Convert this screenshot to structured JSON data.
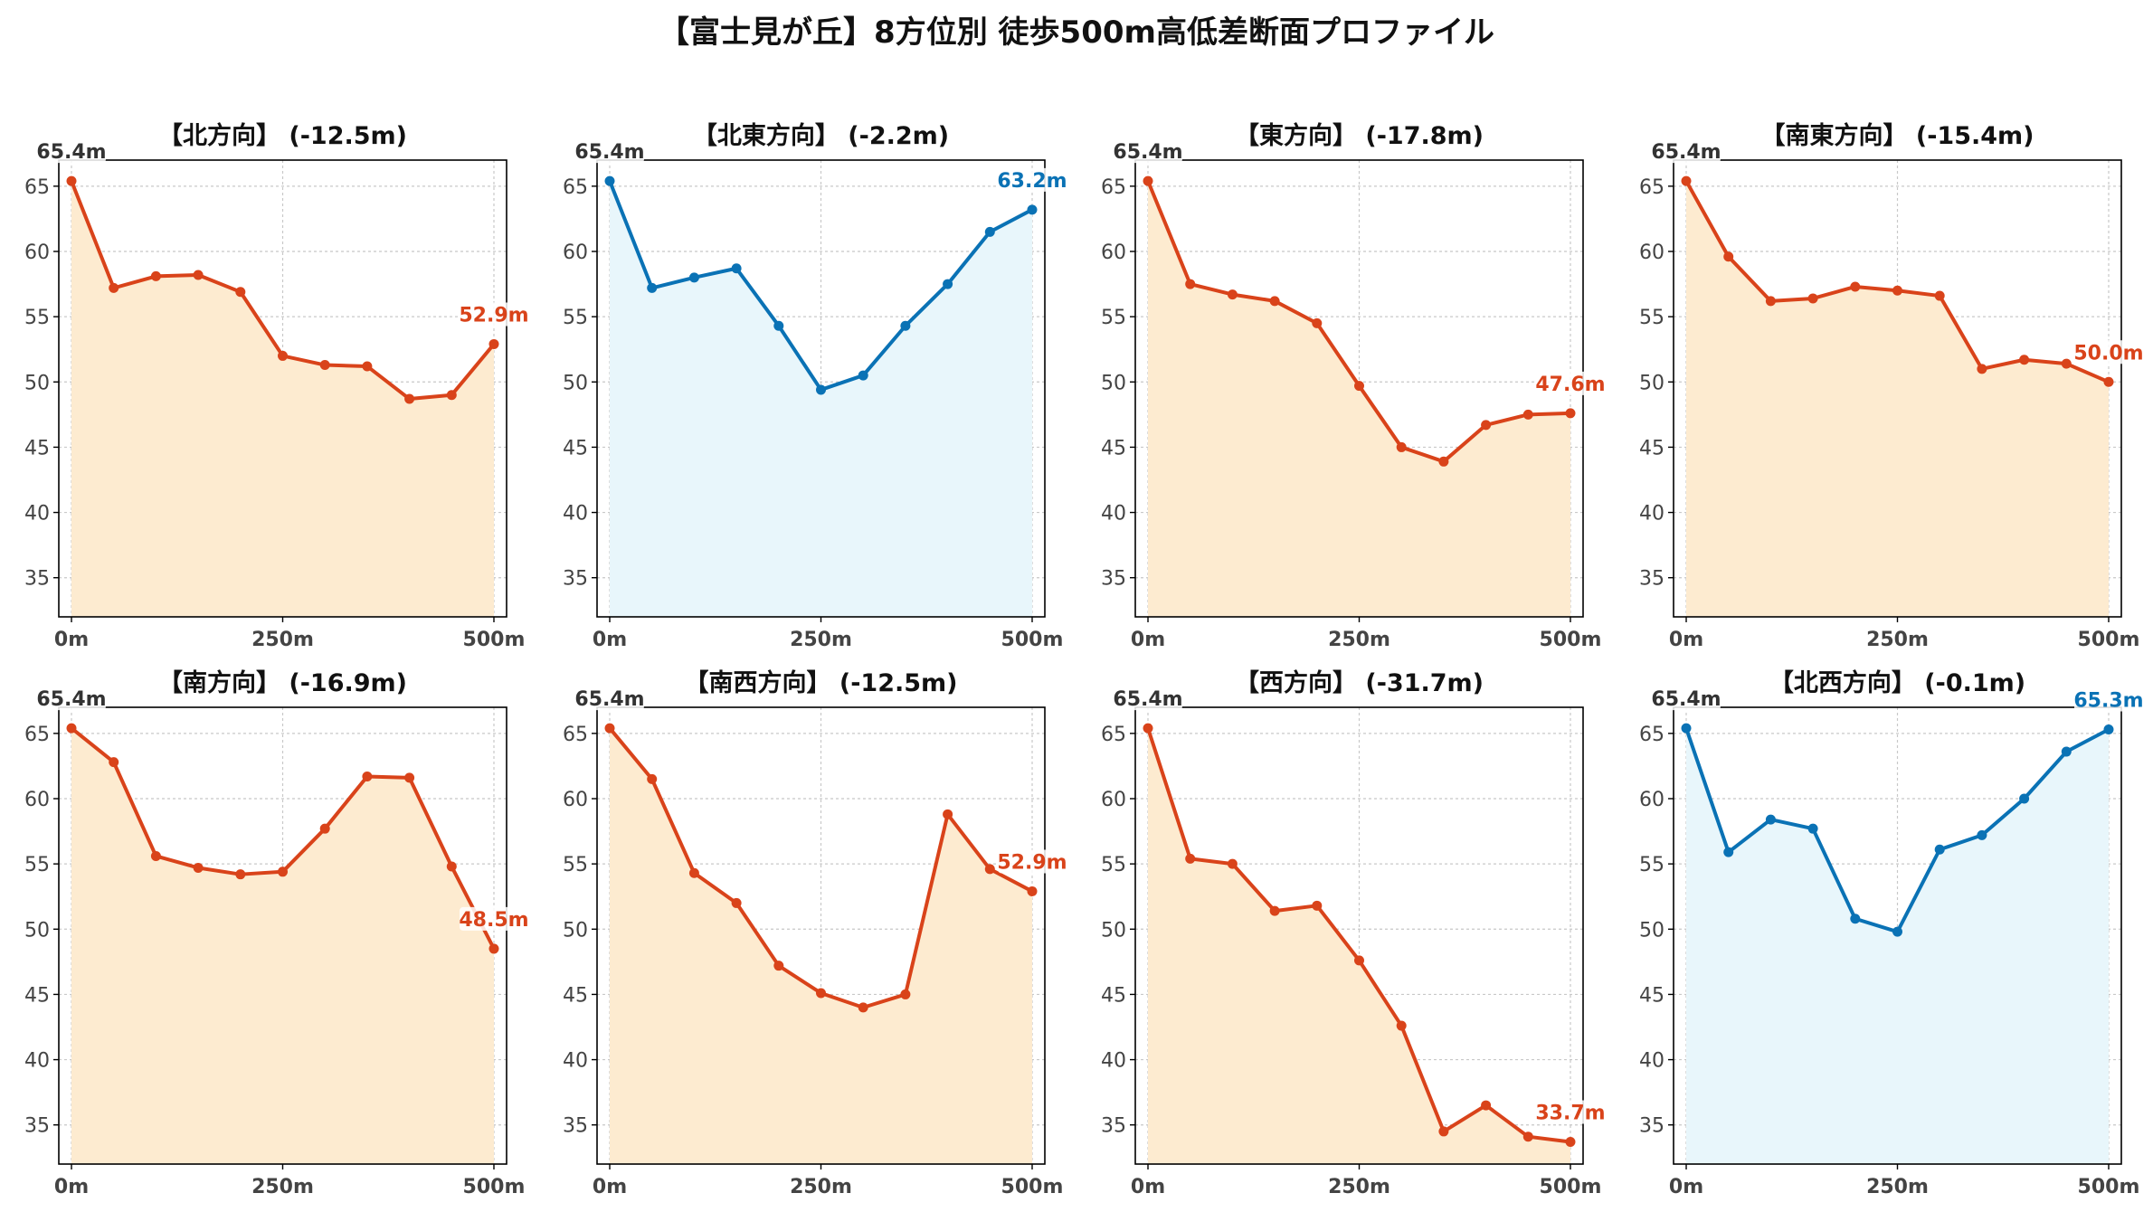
{
  "title": "【富士見が丘】8方位別 徒歩500m高低差断面プロファイル",
  "colors": {
    "down_line": "#d9431a",
    "down_fill": "#fdebd0",
    "up_line": "#0a72b5",
    "up_fill": "#e8f6fb",
    "grid": "#c8c8c8",
    "axis": "#000000",
    "tick_text": "#444444",
    "start_label": "#333333"
  },
  "chart_data": [
    {
      "type": "area",
      "title": "【北方向】 (-12.5m)",
      "x": [
        0,
        50,
        100,
        150,
        200,
        250,
        300,
        350,
        400,
        450,
        500
      ],
      "y": [
        65.4,
        57.2,
        58.1,
        58.2,
        56.9,
        52.0,
        51.3,
        51.2,
        48.7,
        49.0,
        52.9
      ],
      "trend": "down",
      "start_label": "65.4m",
      "end_label": "52.9m",
      "xticks": [
        "0m",
        "250m",
        "500m"
      ],
      "yticks": [
        35,
        40,
        45,
        50,
        55,
        60,
        65
      ],
      "ylim": [
        32,
        67
      ],
      "xlim": [
        -15,
        515
      ],
      "grid": true
    },
    {
      "type": "area",
      "title": "【北東方向】 (-2.2m)",
      "x": [
        0,
        50,
        100,
        150,
        200,
        250,
        300,
        350,
        400,
        450,
        500
      ],
      "y": [
        65.4,
        57.2,
        58.0,
        58.7,
        54.3,
        49.4,
        50.5,
        54.3,
        57.5,
        61.5,
        63.2
      ],
      "trend": "up",
      "start_label": "65.4m",
      "end_label": "63.2m",
      "xticks": [
        "0m",
        "250m",
        "500m"
      ],
      "yticks": [
        35,
        40,
        45,
        50,
        55,
        60,
        65
      ],
      "ylim": [
        32,
        67
      ],
      "xlim": [
        -15,
        515
      ],
      "grid": true
    },
    {
      "type": "area",
      "title": "【東方向】 (-17.8m)",
      "x": [
        0,
        50,
        100,
        150,
        200,
        250,
        300,
        350,
        400,
        450,
        500
      ],
      "y": [
        65.4,
        57.5,
        56.7,
        56.2,
        54.5,
        49.7,
        45.0,
        43.9,
        46.7,
        47.5,
        47.6
      ],
      "trend": "down",
      "start_label": "65.4m",
      "end_label": "47.6m",
      "xticks": [
        "0m",
        "250m",
        "500m"
      ],
      "yticks": [
        35,
        40,
        45,
        50,
        55,
        60,
        65
      ],
      "ylim": [
        32,
        67
      ],
      "xlim": [
        -15,
        515
      ],
      "grid": true
    },
    {
      "type": "area",
      "title": "【南東方向】 (-15.4m)",
      "x": [
        0,
        50,
        100,
        150,
        200,
        250,
        300,
        350,
        400,
        450,
        500
      ],
      "y": [
        65.4,
        59.6,
        56.2,
        56.4,
        57.3,
        57.0,
        56.6,
        51.0,
        51.7,
        51.4,
        50.0
      ],
      "trend": "down",
      "start_label": "65.4m",
      "end_label": "50.0m",
      "xticks": [
        "0m",
        "250m",
        "500m"
      ],
      "yticks": [
        35,
        40,
        45,
        50,
        55,
        60,
        65
      ],
      "ylim": [
        32,
        67
      ],
      "xlim": [
        -15,
        515
      ],
      "grid": true
    },
    {
      "type": "area",
      "title": "【南方向】 (-16.9m)",
      "x": [
        0,
        50,
        100,
        150,
        200,
        250,
        300,
        350,
        400,
        450,
        500
      ],
      "y": [
        65.4,
        62.8,
        55.6,
        54.7,
        54.2,
        54.4,
        57.7,
        61.7,
        61.6,
        54.8,
        48.5
      ],
      "trend": "down",
      "start_label": "65.4m",
      "end_label": "48.5m",
      "xticks": [
        "0m",
        "250m",
        "500m"
      ],
      "yticks": [
        35,
        40,
        45,
        50,
        55,
        60,
        65
      ],
      "ylim": [
        32,
        67
      ],
      "xlim": [
        -15,
        515
      ],
      "grid": true
    },
    {
      "type": "area",
      "title": "【南西方向】 (-12.5m)",
      "x": [
        0,
        50,
        100,
        150,
        200,
        250,
        300,
        350,
        400,
        450,
        500
      ],
      "y": [
        65.4,
        61.5,
        54.3,
        52.0,
        47.2,
        45.1,
        44.0,
        45.0,
        58.8,
        54.6,
        52.9
      ],
      "trend": "down",
      "start_label": "65.4m",
      "end_label": "52.9m",
      "xticks": [
        "0m",
        "250m",
        "500m"
      ],
      "yticks": [
        35,
        40,
        45,
        50,
        55,
        60,
        65
      ],
      "ylim": [
        32,
        67
      ],
      "xlim": [
        -15,
        515
      ],
      "grid": true
    },
    {
      "type": "area",
      "title": "【西方向】 (-31.7m)",
      "x": [
        0,
        50,
        100,
        150,
        200,
        250,
        300,
        350,
        400,
        450,
        500
      ],
      "y": [
        65.4,
        55.4,
        55.0,
        51.4,
        51.8,
        47.6,
        42.6,
        34.5,
        36.5,
        34.1,
        33.7
      ],
      "trend": "down",
      "start_label": "65.4m",
      "end_label": "33.7m",
      "xticks": [
        "0m",
        "250m",
        "500m"
      ],
      "yticks": [
        35,
        40,
        45,
        50,
        55,
        60,
        65
      ],
      "ylim": [
        32,
        67
      ],
      "xlim": [
        -15,
        515
      ],
      "grid": true
    },
    {
      "type": "area",
      "title": "【北西方向】 (-0.1m)",
      "x": [
        0,
        50,
        100,
        150,
        200,
        250,
        300,
        350,
        400,
        450,
        500
      ],
      "y": [
        65.4,
        55.9,
        58.4,
        57.7,
        50.8,
        49.8,
        56.1,
        57.2,
        60.0,
        63.6,
        65.3
      ],
      "trend": "up",
      "start_label": "65.4m",
      "end_label": "65.3m",
      "xticks": [
        "0m",
        "250m",
        "500m"
      ],
      "yticks": [
        35,
        40,
        45,
        50,
        55,
        60,
        65
      ],
      "ylim": [
        32,
        67
      ],
      "xlim": [
        -15,
        515
      ],
      "grid": true
    }
  ]
}
